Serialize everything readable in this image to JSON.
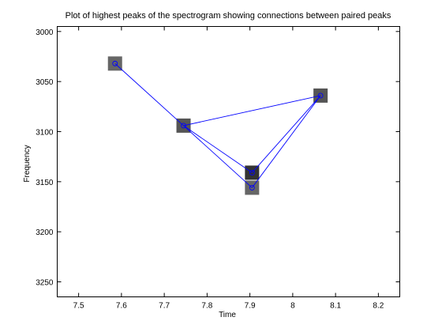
{
  "chart_data": {
    "type": "scatter",
    "title": "Plot of highest peaks of the spectrogram showing connections between paired peaks",
    "xlabel": "Time",
    "ylabel": "Frequency",
    "xlim": [
      7.45,
      8.25
    ],
    "ylim": [
      2995,
      3265
    ],
    "y_reversed": true,
    "xticks": [
      7.5,
      7.6,
      7.7,
      7.8,
      7.9,
      8.0,
      8.1,
      8.2
    ],
    "xtick_labels": [
      "7.5",
      "7.6",
      "7.7",
      "7.8",
      "7.9",
      "8",
      "8.1",
      "8.2"
    ],
    "yticks": [
      3000,
      3050,
      3100,
      3150,
      3200,
      3250
    ],
    "ytick_labels": [
      "3000",
      "3050",
      "3100",
      "3150",
      "3200",
      "3250"
    ],
    "grid": false,
    "legend": "none",
    "peaks": [
      {
        "x": 7.585,
        "y": 3032,
        "shade": "#666666"
      },
      {
        "x": 7.745,
        "y": 3094,
        "shade": "#555555"
      },
      {
        "x": 7.905,
        "y": 3141,
        "shade": "#333333"
      },
      {
        "x": 7.905,
        "y": 3156,
        "shade": "#666666"
      },
      {
        "x": 8.065,
        "y": 3064,
        "shade": "#555555"
      }
    ],
    "points": [
      {
        "x": 7.585,
        "y": 3032
      },
      {
        "x": 7.745,
        "y": 3094
      },
      {
        "x": 7.905,
        "y": 3141
      },
      {
        "x": 7.905,
        "y": 3156
      },
      {
        "x": 8.065,
        "y": 3064
      }
    ],
    "connections": [
      {
        "x": [
          7.585,
          7.745
        ],
        "y": [
          3032,
          3094
        ]
      },
      {
        "x": [
          7.745,
          8.065
        ],
        "y": [
          3094,
          3064
        ]
      },
      {
        "x": [
          7.745,
          7.905
        ],
        "y": [
          3094,
          3141
        ]
      },
      {
        "x": [
          7.745,
          7.905
        ],
        "y": [
          3094,
          3156
        ]
      },
      {
        "x": [
          7.905,
          8.065
        ],
        "y": [
          3141,
          3064
        ]
      },
      {
        "x": [
          7.905,
          8.065
        ],
        "y": [
          3156,
          3064
        ]
      }
    ],
    "colors": {
      "line": "#0000ff",
      "marker": "#0000ff",
      "axes": "#000000",
      "background": "#ffffff"
    }
  }
}
